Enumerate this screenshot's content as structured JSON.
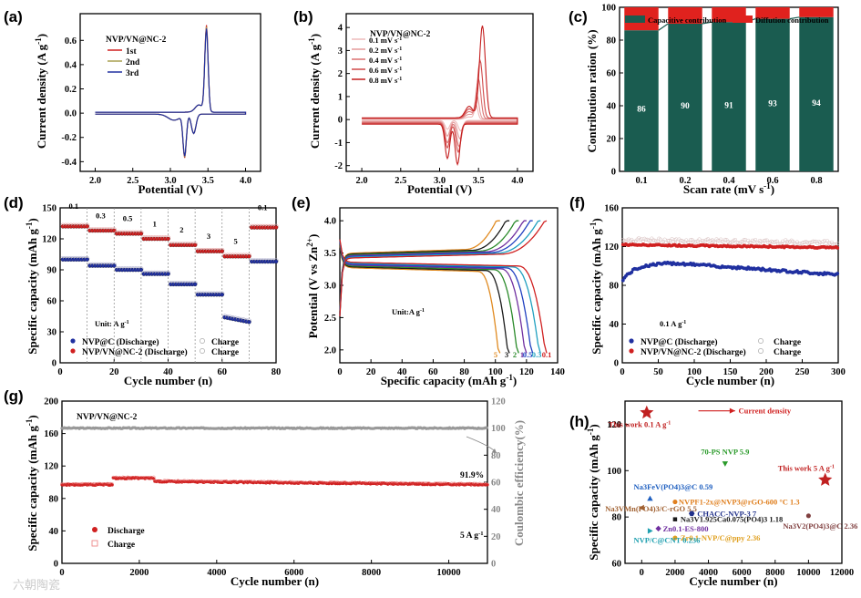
{
  "watermark": "六朝陶瓷",
  "colors": {
    "red": "#d02020",
    "darkred": "#b01818",
    "blue": "#2030a0",
    "olive": "#a8a050",
    "teal": "#1a5c50",
    "diff": "#e0221e",
    "gray": "#9a9a9a"
  },
  "chart_data": [
    {
      "id": "a",
      "panel_label": "(a)",
      "type": "line",
      "title": "NVP/VN@NC-2",
      "xlabel": "Potential (V)",
      "ylabel": "Current density (A g",
      "xlim": [
        1.8,
        4.2
      ],
      "ylim": [
        -0.48,
        0.82
      ],
      "xticks": [
        "2.0",
        "2.5",
        "3.0",
        "3.5",
        "4.0"
      ],
      "yticks": [
        "-0.4",
        "-0.2",
        "0.0",
        "0.2",
        "0.4",
        "0.6"
      ],
      "series": [
        {
          "name": "1st",
          "color": "#d02020"
        },
        {
          "name": "2nd",
          "color": "#a8a050"
        },
        {
          "name": "3rd",
          "color": "#2030a0"
        }
      ],
      "features": {
        "anodic_peak": [
          3.48,
          0.71
        ],
        "cathodic_peak": [
          3.19,
          -0.35
        ]
      }
    },
    {
      "id": "b",
      "panel_label": "(b)",
      "type": "line",
      "title": "NVP/VN@NC-2",
      "xlabel": "Potential (V)",
      "ylabel": "Current density (A g",
      "xlim": [
        1.8,
        4.2
      ],
      "ylim": [
        -2.25,
        4.6
      ],
      "xticks": [
        "2.0",
        "2.5",
        "3.0",
        "3.5",
        "4.0"
      ],
      "yticks": [
        "-2",
        "-1",
        "0",
        "1",
        "2",
        "3",
        "4"
      ],
      "series": [
        {
          "name": "0.1 mV s",
          "rate": 0.1,
          "anodic": [
            3.47,
            0.6
          ],
          "cathodic": [
            3.22,
            -0.45
          ]
        },
        {
          "name": "0.2 mV s",
          "rate": 0.2,
          "anodic": [
            3.48,
            1.0
          ],
          "cathodic": [
            3.21,
            -0.75
          ]
        },
        {
          "name": "0.4 mV s",
          "rate": 0.4,
          "anodic": [
            3.5,
            1.7
          ],
          "cathodic": [
            3.2,
            -1.05
          ]
        },
        {
          "name": "0.6 mV s",
          "rate": 0.6,
          "anodic": [
            3.52,
            2.5
          ],
          "cathodic": [
            3.19,
            -1.25
          ]
        },
        {
          "name": "0.8 mV s",
          "rate": 0.8,
          "anodic": [
            3.55,
            4.0
          ],
          "cathodic": [
            3.18,
            -1.75
          ]
        }
      ]
    },
    {
      "id": "c",
      "panel_label": "(c)",
      "type": "bar",
      "xlabel": "Scan rate (mV s",
      "ylabel": "Contribution ration (%)",
      "categories": [
        "0.1",
        "0.2",
        "0.4",
        "0.6",
        "0.8"
      ],
      "series": [
        {
          "name": "Capacitive contribution",
          "values": [
            86,
            90,
            91,
            93,
            94
          ]
        },
        {
          "name": "Diffution contribution",
          "values": [
            14,
            10,
            9,
            7,
            6
          ]
        }
      ],
      "ylim": [
        0,
        100
      ],
      "yticks": [
        "0",
        "20",
        "40",
        "60",
        "80",
        "100"
      ]
    },
    {
      "id": "d",
      "panel_label": "(d)",
      "type": "scatter",
      "xlabel": "Cycle number (n)",
      "ylabel": "Specific capacity (mAh g",
      "xlim": [
        0,
        80
      ],
      "ylim": [
        0,
        150
      ],
      "xticks": [
        "0",
        "20",
        "40",
        "60",
        "80"
      ],
      "yticks": [
        "0",
        "30",
        "60",
        "90",
        "120",
        "150"
      ],
      "rate_labels": [
        "0.1",
        "0.3",
        "0.5",
        "1",
        "2",
        "3",
        "5",
        "0.1"
      ],
      "unit_text": "Unit:  A g",
      "series": [
        {
          "name": "NVP@C (Discharge)",
          "values": [
            100,
            94,
            90,
            86,
            76,
            66,
            44,
            98
          ]
        },
        {
          "name": "NVP/VN@NC-2 (Discharge)",
          "values": [
            132,
            128,
            125,
            120,
            114,
            108,
            103,
            131
          ]
        },
        {
          "name": "Charge"
        },
        {
          "name": "Charge"
        }
      ]
    },
    {
      "id": "e",
      "panel_label": "(e)",
      "type": "line",
      "xlabel": "Specific capacity (mAh g",
      "ylabel": "Potential (V vs Zn",
      "xlim": [
        0,
        140
      ],
      "ylim": [
        1.8,
        4.2
      ],
      "xticks": [
        "0",
        "20",
        "40",
        "60",
        "80",
        "100",
        "120",
        "140"
      ],
      "yticks": [
        "2.0",
        "2.5",
        "3.0",
        "3.5",
        "4.0"
      ],
      "unit_text": "Unit:A g",
      "series": [
        {
          "name": "5",
          "capacity": 103,
          "color": "#e08a20"
        },
        {
          "name": "3",
          "capacity": 109,
          "color": "#1a1a1a"
        },
        {
          "name": "2",
          "capacity": 115,
          "color": "#2a8a2a"
        },
        {
          "name": "1",
          "capacity": 120,
          "color": "#7030a0"
        },
        {
          "name": "0.5",
          "capacity": 124,
          "color": "#2040c0"
        },
        {
          "name": "0.3",
          "capacity": 129,
          "color": "#20a0c0"
        },
        {
          "name": "0.1",
          "capacity": 133,
          "color": "#d02020"
        }
      ],
      "end_labels": [
        "5",
        "3",
        "2",
        "1",
        "0.5",
        "0.3",
        "0.1"
      ]
    },
    {
      "id": "f",
      "panel_label": "(f)",
      "type": "scatter",
      "xlabel": "Cycle number (n)",
      "ylabel": "Specific capacity (mAh g",
      "xlim": [
        0,
        300
      ],
      "ylim": [
        0,
        160
      ],
      "xticks": [
        "0",
        "50",
        "100",
        "150",
        "200",
        "250",
        "300"
      ],
      "yticks": [
        "0",
        "40",
        "80",
        "120",
        "160"
      ],
      "rate_text": "0.1 A g",
      "series": [
        {
          "name": "NVP@C (Discharge)",
          "start": 85,
          "peak": [
            70,
            103
          ],
          "end": 91
        },
        {
          "name": "NVP/VN@NC-2 (Discharge)",
          "start": 122,
          "end": 119
        },
        {
          "name": "Charge"
        },
        {
          "name": "Charge"
        }
      ]
    },
    {
      "id": "g",
      "panel_label": "(g)",
      "type": "scatter",
      "title": "NVP/VN@NC-2",
      "xlabel": "Cycle number (n)",
      "ylabel": "Specific capacity (mAh g",
      "y2label": "Coulombic efficiency(%)",
      "xlim": [
        0,
        11000
      ],
      "ylim": [
        0,
        200
      ],
      "y2lim": [
        0,
        120
      ],
      "xticks": [
        "0",
        "2000",
        "4000",
        "6000",
        "8000",
        "10000"
      ],
      "yticks": [
        "0",
        "40",
        "80",
        "120",
        "160",
        "200"
      ],
      "y2ticks": [
        "0",
        "20",
        "40",
        "60",
        "80",
        "100",
        "120"
      ],
      "retention": "91.9%",
      "rate_text": "5 A g",
      "series": [
        {
          "name": "Discharge",
          "start": 97,
          "bump": [
            1700,
            105
          ],
          "end": 97
        },
        {
          "name": "Charge"
        },
        {
          "name": "Coulombic efficiency",
          "value": 100
        }
      ]
    },
    {
      "id": "h",
      "panel_label": "(h)",
      "type": "scatter",
      "xlabel": "Cycle number (n)",
      "ylabel": "Specific capacity (mAh g",
      "xlim": [
        -1000,
        12000
      ],
      "ylim": [
        60,
        130
      ],
      "xticks": [
        "0",
        "2000",
        "4000",
        "6000",
        "8000",
        "10000",
        "12000"
      ],
      "yticks": [
        "60",
        "80",
        "100",
        "120"
      ],
      "points": [
        {
          "label": "This work 0.1 A g",
          "x": 300,
          "y": 125,
          "color": "#c02020",
          "marker": "star"
        },
        {
          "label": "This work 5 A g",
          "x": 11000,
          "y": 96,
          "color": "#c02020",
          "marker": "star"
        },
        {
          "label": "70-PS NVP 5.9",
          "x": 5000,
          "y": 103,
          "color": "#2a9a2a",
          "marker": "tri-down"
        },
        {
          "label": "Na3FeV(PO4)3@C 0.59",
          "x": 500,
          "y": 88,
          "color": "#2060c0",
          "marker": "tri-up"
        },
        {
          "label": "NVPF1-2x@NVP3@rGO-600 °C 1.3",
          "x": 2000,
          "y": 86.5,
          "color": "#e08020",
          "marker": "circle"
        },
        {
          "label": "Na3VMn(PO4)3/C-rGO 5.5",
          "x": 0,
          "y": 84,
          "color": "#a06030",
          "marker": "tri-left"
        },
        {
          "label": "CHACC-NVP-3 7",
          "x": 3000,
          "y": 81.5,
          "color": "#20308a",
          "marker": "hexagon"
        },
        {
          "label": "Na3V1.925Ca0.075(PO4)3 1.18",
          "x": 2000,
          "y": 79,
          "color": "#1a1a1a",
          "marker": "square"
        },
        {
          "label": "Zn0.1-ES-800",
          "x": 1000,
          "y": 75,
          "color": "#7030a0",
          "marker": "diamond"
        },
        {
          "label": "Zr0.1-NVP/C@ppy 2.36",
          "x": 2000,
          "y": 71,
          "color": "#e0a020",
          "marker": "circle"
        },
        {
          "label": "NVP/C@CNT 0.236",
          "x": 500,
          "y": 74,
          "color": "#20a0b0",
          "marker": "tri-right"
        },
        {
          "label": "Na3V2(PO4)3@C 2.36",
          "x": 10000,
          "y": 80.5,
          "color": "#804040",
          "marker": "circle"
        }
      ],
      "arrow_text": "Current density"
    }
  ]
}
